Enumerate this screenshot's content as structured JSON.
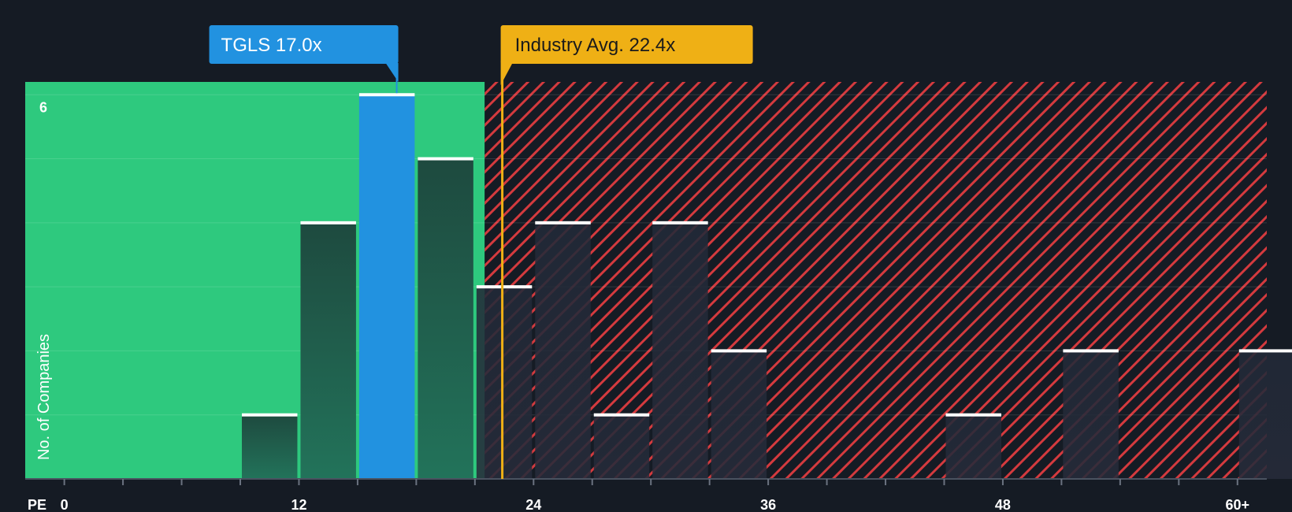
{
  "chart_data": {
    "type": "bar",
    "title": "",
    "xlabel": "PE",
    "ylabel": "No. of Companies",
    "bin_width": 3,
    "x_ticks": [
      "0",
      "12",
      "24",
      "36",
      "48",
      "60+"
    ],
    "x_tick_values": [
      0,
      12,
      24,
      36,
      48,
      60
    ],
    "y_ticks": [
      "6"
    ],
    "y_tick_values": [
      6
    ],
    "xlim": [
      -2,
      61.5
    ],
    "ylim": [
      0,
      6.2
    ],
    "bins": [
      {
        "start": 9,
        "value": 1
      },
      {
        "start": 12,
        "value": 4
      },
      {
        "start": 15,
        "value": 6,
        "highlight": true
      },
      {
        "start": 18,
        "value": 5
      },
      {
        "start": 21,
        "value": 3
      },
      {
        "start": 24,
        "value": 4
      },
      {
        "start": 27,
        "value": 1
      },
      {
        "start": 30,
        "value": 4
      },
      {
        "start": 33,
        "value": 2
      },
      {
        "start": 45,
        "value": 1
      },
      {
        "start": 51,
        "value": 2
      },
      {
        "start": 60,
        "value": 2
      }
    ],
    "company": {
      "label": "TGLS 17.0x",
      "value": 17.0
    },
    "industry_avg": {
      "label": "Industry Avg. 22.4x",
      "value": 22.4
    },
    "fair_zone_end": 21.5,
    "colors": {
      "background": "#151b24",
      "fair_zone": "#2ec97e",
      "overvalued_hatch": "#d43a3e",
      "company": "#2292e0",
      "industry": "#efb015"
    }
  }
}
